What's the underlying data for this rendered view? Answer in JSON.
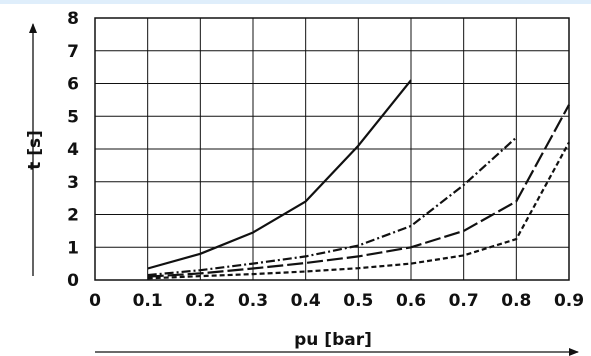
{
  "chart_data": {
    "type": "line",
    "xlabel": "pu [bar]",
    "ylabel": "t [s]",
    "xlim": [
      0,
      0.9
    ],
    "ylim": [
      0,
      8
    ],
    "x_ticks": [
      "0",
      "0.1",
      "0.2",
      "0.3",
      "0.4",
      "0.5",
      "0.6",
      "0.7",
      "0.8",
      "0.9"
    ],
    "y_ticks": [
      "0",
      "1",
      "2",
      "3",
      "4",
      "5",
      "6",
      "7",
      "8"
    ],
    "grid": true,
    "series": [
      {
        "style": "solid",
        "points": [
          [
            0.1,
            0.35
          ],
          [
            0.2,
            0.8
          ],
          [
            0.3,
            1.45
          ],
          [
            0.4,
            2.4
          ],
          [
            0.5,
            4.1
          ],
          [
            0.6,
            6.1
          ]
        ]
      },
      {
        "style": "dash-dot",
        "points": [
          [
            0.1,
            0.15
          ],
          [
            0.2,
            0.3
          ],
          [
            0.3,
            0.5
          ],
          [
            0.4,
            0.72
          ],
          [
            0.5,
            1.05
          ],
          [
            0.6,
            1.65
          ],
          [
            0.7,
            2.9
          ],
          [
            0.8,
            4.35
          ]
        ]
      },
      {
        "style": "long-dash",
        "points": [
          [
            0.1,
            0.1
          ],
          [
            0.2,
            0.2
          ],
          [
            0.3,
            0.35
          ],
          [
            0.4,
            0.52
          ],
          [
            0.5,
            0.72
          ],
          [
            0.6,
            1.0
          ],
          [
            0.7,
            1.5
          ],
          [
            0.8,
            2.4
          ],
          [
            0.9,
            5.35
          ]
        ]
      },
      {
        "style": "short-dash",
        "points": [
          [
            0.1,
            0.05
          ],
          [
            0.2,
            0.12
          ],
          [
            0.3,
            0.18
          ],
          [
            0.4,
            0.26
          ],
          [
            0.5,
            0.36
          ],
          [
            0.6,
            0.5
          ],
          [
            0.7,
            0.75
          ],
          [
            0.8,
            1.25
          ],
          [
            0.9,
            4.2
          ]
        ]
      }
    ]
  }
}
